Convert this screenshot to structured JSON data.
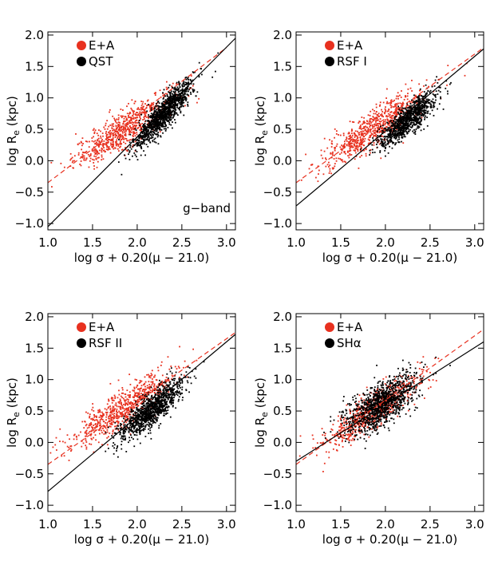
{
  "figure": {
    "title": ""
  },
  "colors": {
    "ea": "#e8311f",
    "black": "#000000",
    "fit_ea": "#e8311f",
    "fit_comp": "#000000"
  },
  "chart_data": [
    {
      "type": "scatter",
      "id": "p1",
      "xlabel": "log σ + 0.20(μ − 21.0)",
      "ylabel": "log R_e (kpc)",
      "xlim": [
        1.0,
        3.1
      ],
      "ylim": [
        -1.1,
        2.05
      ],
      "xticks": [
        1.0,
        1.5,
        2.0,
        2.5,
        3.0
      ],
      "xtick_labels": [
        "1.0",
        "1.5",
        "2.0",
        "2.5",
        "3.0"
      ],
      "yticks": [
        -1.0,
        -0.5,
        0.0,
        0.5,
        1.0,
        1.5,
        2.0
      ],
      "ytick_labels": [
        "−1.0",
        "−0.5",
        "0.0",
        "0.5",
        "1.0",
        "1.5",
        "2.0"
      ],
      "legend": [
        "E+A",
        "QST"
      ],
      "legend_placement": "top-left",
      "annotation": "g−band",
      "series": [
        {
          "name": "E+A",
          "color": "#e8311f",
          "center": [
            1.85,
            0.5
          ],
          "spread": [
            0.28,
            0.25
          ],
          "slope": 0.9,
          "n": 700
        },
        {
          "name": "QST",
          "color": "#000000",
          "center": [
            2.3,
            0.75
          ],
          "spread": [
            0.16,
            0.2
          ],
          "slope": 1.45,
          "n": 1200
        }
      ],
      "fits": [
        {
          "name": "E+A fit",
          "color": "#e8311f",
          "dashed": true,
          "points": [
            [
              1.0,
              -0.35
            ],
            [
              3.0,
              1.8
            ]
          ]
        },
        {
          "name": "QST fit",
          "color": "#000000",
          "dashed": false,
          "points": [
            [
              1.0,
              -1.05
            ],
            [
              3.1,
              1.95
            ]
          ]
        }
      ]
    },
    {
      "type": "scatter",
      "id": "p2",
      "xlabel": "log σ + 0.20(μ − 21.0)",
      "ylabel": "log R_e (kpc)",
      "xlim": [
        1.0,
        3.1
      ],
      "ylim": [
        -1.1,
        2.05
      ],
      "xticks": [
        1.0,
        1.5,
        2.0,
        2.5,
        3.0
      ],
      "xtick_labels": [
        "1.0",
        "1.5",
        "2.0",
        "2.5",
        "3.0"
      ],
      "yticks": [
        -1.0,
        -0.5,
        0.0,
        0.5,
        1.0,
        1.5,
        2.0
      ],
      "ytick_labels": [
        "−1.0",
        "−0.5",
        "0.0",
        "0.5",
        "1.0",
        "1.5",
        "2.0"
      ],
      "legend": [
        "E+A",
        "RSF I"
      ],
      "legend_placement": "top-left",
      "series": [
        {
          "name": "E+A",
          "color": "#e8311f",
          "center": [
            1.85,
            0.5
          ],
          "spread": [
            0.28,
            0.25
          ],
          "slope": 0.9,
          "n": 700
        },
        {
          "name": "RSF I",
          "color": "#000000",
          "center": [
            2.25,
            0.65
          ],
          "spread": [
            0.16,
            0.2
          ],
          "slope": 1.15,
          "n": 1000
        }
      ],
      "fits": [
        {
          "name": "E+A fit",
          "color": "#e8311f",
          "dashed": true,
          "points": [
            [
              1.0,
              -0.35
            ],
            [
              3.1,
              1.8
            ]
          ]
        },
        {
          "name": "RSF I fit",
          "color": "#000000",
          "dashed": false,
          "points": [
            [
              1.0,
              -0.72
            ],
            [
              3.1,
              1.78
            ]
          ]
        }
      ]
    },
    {
      "type": "scatter",
      "id": "p3",
      "xlabel": "log σ + 0.20(μ − 21.0)",
      "ylabel": "log R_e (kpc)",
      "xlim": [
        1.0,
        3.1
      ],
      "ylim": [
        -1.1,
        2.05
      ],
      "xticks": [
        1.0,
        1.5,
        2.0,
        2.5,
        3.0
      ],
      "xtick_labels": [
        "1.0",
        "1.5",
        "2.0",
        "2.5",
        "3.0"
      ],
      "yticks": [
        -1.0,
        -0.5,
        0.0,
        0.5,
        1.0,
        1.5,
        2.0
      ],
      "ytick_labels": [
        "−1.0",
        "−0.5",
        "0.0",
        "0.5",
        "1.0",
        "1.5",
        "2.0"
      ],
      "legend": [
        "E+A",
        "RSF II"
      ],
      "legend_placement": "top-left",
      "series": [
        {
          "name": "E+A",
          "color": "#e8311f",
          "center": [
            1.85,
            0.55
          ],
          "spread": [
            0.28,
            0.25
          ],
          "slope": 0.9,
          "n": 700
        },
        {
          "name": "RSF II",
          "color": "#000000",
          "center": [
            2.15,
            0.5
          ],
          "spread": [
            0.18,
            0.22
          ],
          "slope": 1.15,
          "n": 1100
        }
      ],
      "fits": [
        {
          "name": "E+A fit",
          "color": "#e8311f",
          "dashed": true,
          "points": [
            [
              1.0,
              -0.35
            ],
            [
              3.1,
              1.75
            ]
          ]
        },
        {
          "name": "RSF II fit",
          "color": "#000000",
          "dashed": false,
          "points": [
            [
              1.0,
              -0.78
            ],
            [
              3.1,
              1.72
            ]
          ]
        }
      ]
    },
    {
      "type": "scatter",
      "id": "p4",
      "xlabel": "log σ + 0.20(μ − 21.0)",
      "ylabel": "log R_e (kpc)",
      "xlim": [
        1.0,
        3.1
      ],
      "ylim": [
        -1.1,
        2.05
      ],
      "xticks": [
        1.0,
        1.5,
        2.0,
        2.5,
        3.0
      ],
      "xtick_labels": [
        "1.0",
        "1.5",
        "2.0",
        "2.5",
        "3.0"
      ],
      "yticks": [
        -1.0,
        -0.5,
        0.0,
        0.5,
        1.0,
        1.5,
        2.0
      ],
      "ytick_labels": [
        "−1.0",
        "−0.5",
        "0.0",
        "0.5",
        "1.0",
        "1.5",
        "2.0"
      ],
      "legend": [
        "E+A",
        "SHα"
      ],
      "legend_placement": "top-left",
      "series": [
        {
          "name": "E+A",
          "color": "#e8311f",
          "center": [
            1.85,
            0.5
          ],
          "spread": [
            0.28,
            0.25
          ],
          "slope": 0.9,
          "n": 700
        },
        {
          "name": "SHα",
          "color": "#000000",
          "center": [
            1.95,
            0.6
          ],
          "spread": [
            0.2,
            0.3
          ],
          "slope": 0.8,
          "n": 1100
        }
      ],
      "fits": [
        {
          "name": "E+A fit",
          "color": "#e8311f",
          "dashed": true,
          "points": [
            [
              1.0,
              -0.35
            ],
            [
              3.1,
              1.8
            ]
          ]
        },
        {
          "name": "SHα fit",
          "color": "#000000",
          "dashed": false,
          "points": [
            [
              1.0,
              -0.3
            ],
            [
              3.1,
              1.6
            ]
          ]
        }
      ]
    }
  ]
}
